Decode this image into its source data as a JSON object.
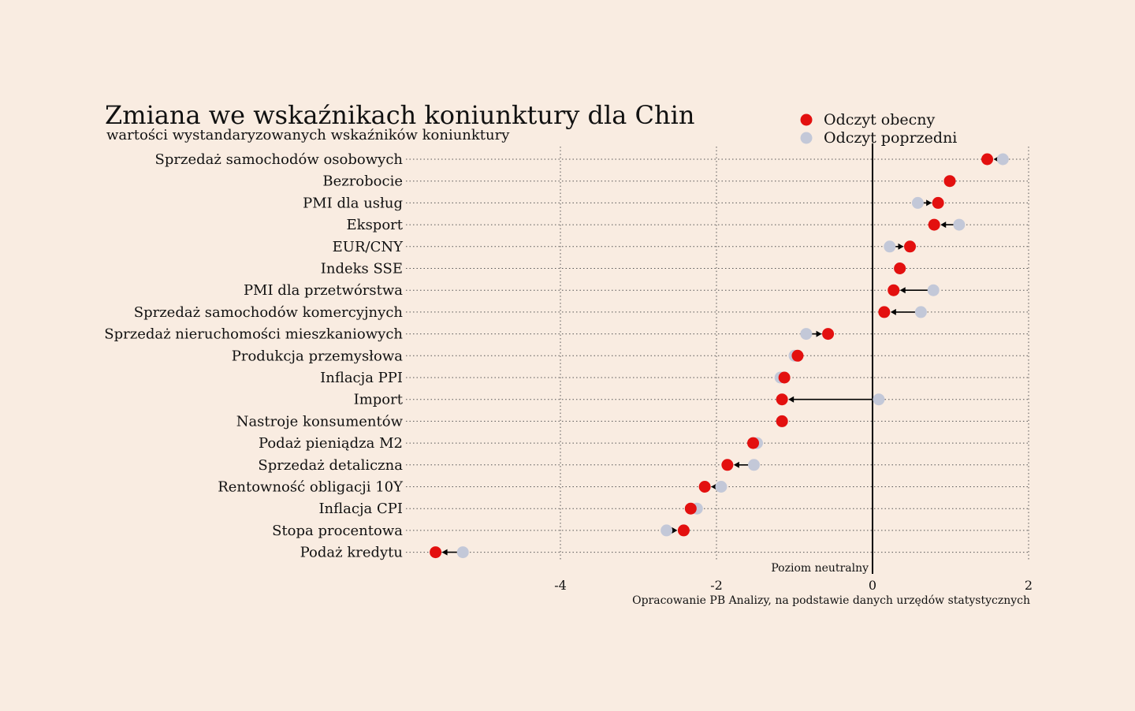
{
  "chart_data": {
    "type": "scatter",
    "title": "Zmiana we wskaźnikach koniunktury dla Chin",
    "subtitle": "wartości wystandaryzowanych wskaźników koniunktury",
    "source": "Opracowanie PB Analizy, na podstawie danych urzędów statystycznych",
    "neutral_label": "Poziom neutralny",
    "xlim": [
      -6,
      2
    ],
    "xticks": [
      -4,
      -2,
      0,
      2
    ],
    "grid": true,
    "legend_position": "top-right",
    "colors": {
      "current": "#e3100f",
      "previous": "#c3c8d8",
      "arrow": "#000000",
      "background": "#f9ece1"
    },
    "series": [
      {
        "name": "Odczyt obecny",
        "key": "current"
      },
      {
        "name": "Odczyt poprzedni",
        "key": "previous"
      }
    ],
    "categories": [
      "Sprzedaż samochodów osobowych",
      "Bezrobocie",
      "PMI dla usług",
      "Eksport",
      "EUR/CNY",
      "Indeks SSE",
      "PMI dla przetwórstwa",
      "Sprzedaż samochodów komercyjnych",
      "Sprzedaż nieruchomości mieszkaniowych",
      "Produkcja przemysłowa",
      "Inflacja PPI",
      "Import",
      "Nastroje konsumentów",
      "Podaż pieniądza M2",
      "Sprzedaż detaliczna",
      "Rentowność obligacji 10Y",
      "Inflacja CPI",
      "Stopa procentowa",
      "Podaż kredytu"
    ],
    "current": [
      1.47,
      0.99,
      0.84,
      0.79,
      0.48,
      0.35,
      0.27,
      0.15,
      -0.57,
      -0.96,
      -1.13,
      -1.16,
      -1.16,
      -1.53,
      -1.86,
      -2.15,
      -2.33,
      -2.42,
      -5.6
    ],
    "previous": [
      1.67,
      0.99,
      0.58,
      1.11,
      0.22,
      0.35,
      0.78,
      0.62,
      -0.85,
      -1.0,
      -1.18,
      0.08,
      -1.16,
      -1.48,
      -1.52,
      -1.94,
      -2.25,
      -2.64,
      -5.25
    ]
  }
}
